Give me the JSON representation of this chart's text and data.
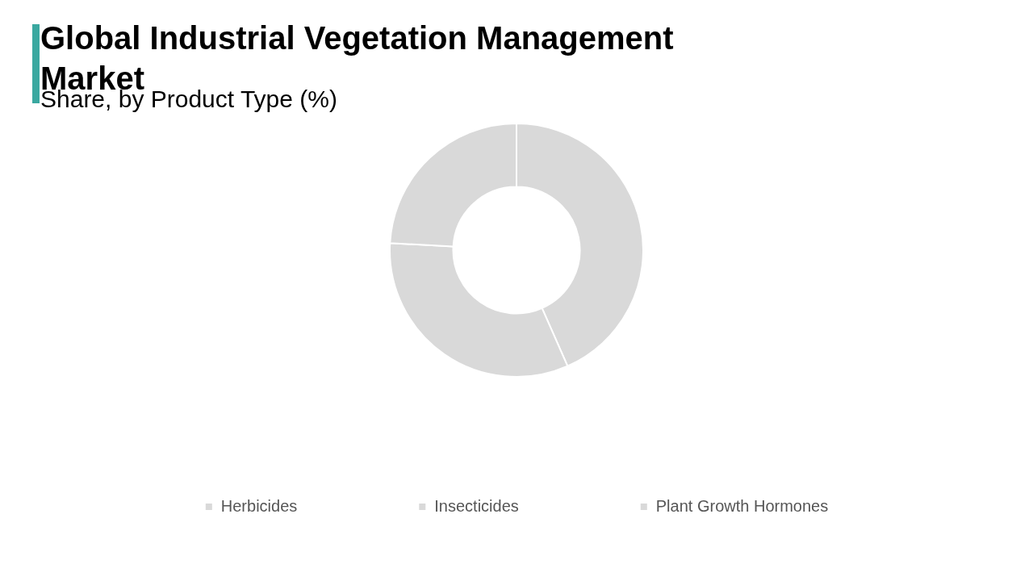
{
  "chart_data": {
    "type": "donut",
    "title": "Global Industrial Vegetation Management Market",
    "subtitle": "Share, by Product Type (%)",
    "categories": [
      "Herbicides",
      "Insecticides",
      "Plant Growth Hormones"
    ],
    "values": [
      43.4,
      32.5,
      24.1
    ],
    "colors": [
      "#d9d9d9",
      "#d9d9d9",
      "#d9d9d9"
    ],
    "legend": "bottom"
  }
}
